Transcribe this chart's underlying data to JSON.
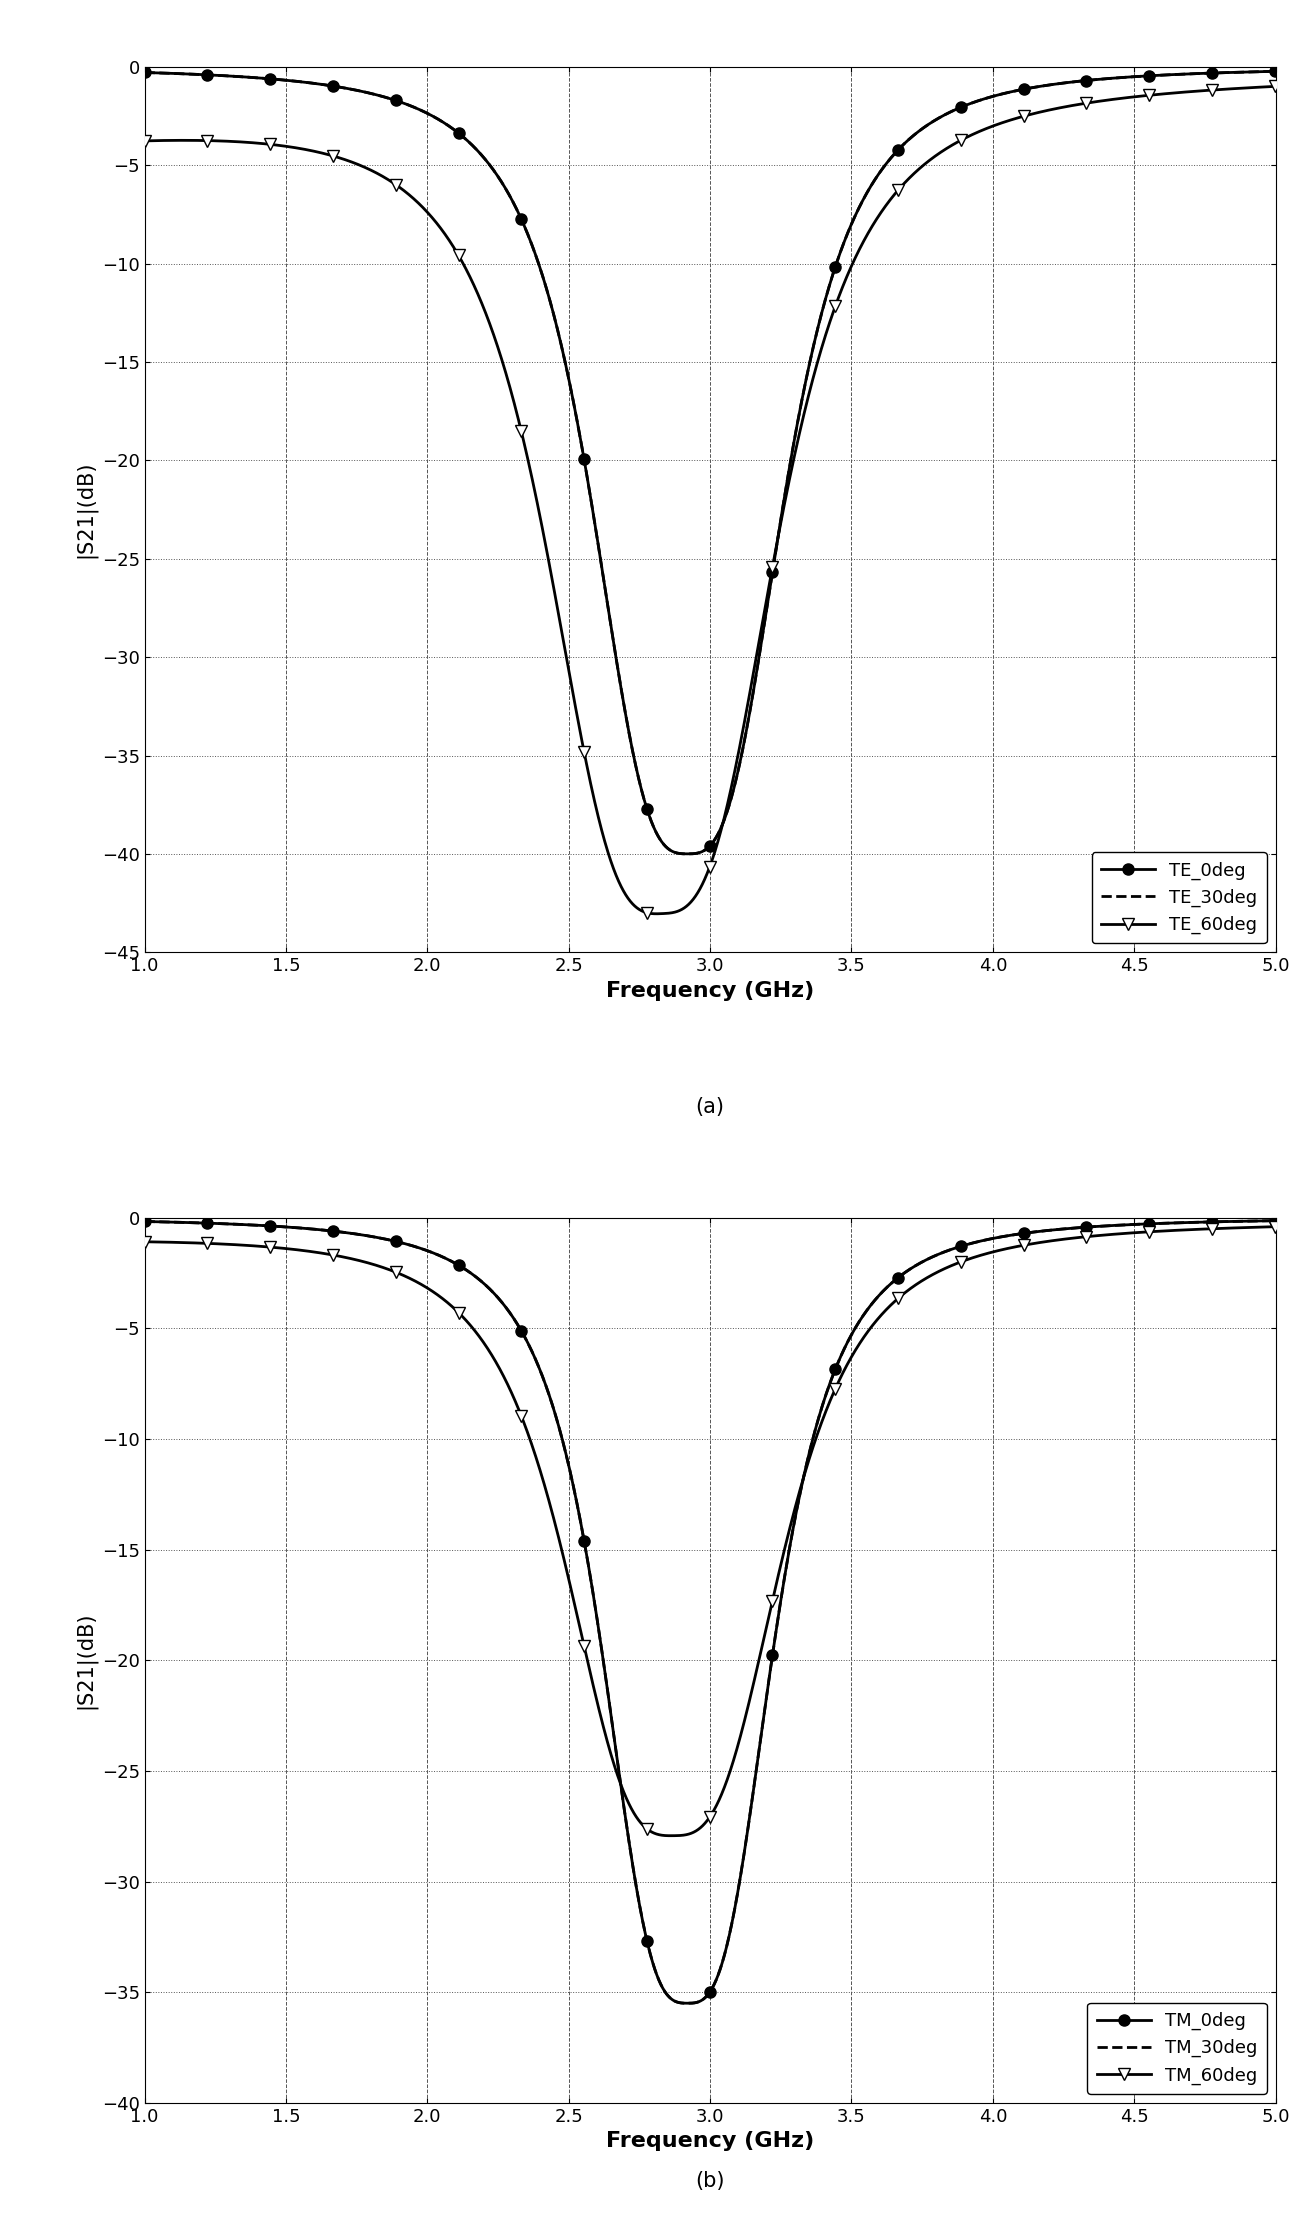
{
  "xlabel": "Frequency (GHz)",
  "ylabel": "|S21|(dB)",
  "xlim": [
    1.0,
    5.0
  ],
  "ylim_a": [
    -45,
    0
  ],
  "ylim_b": [
    -40,
    0
  ],
  "xticks": [
    1.0,
    1.5,
    2.0,
    2.5,
    3.0,
    3.5,
    4.0,
    4.5,
    5.0
  ],
  "yticks_a": [
    0,
    -5,
    -10,
    -15,
    -20,
    -25,
    -30,
    -35,
    -40,
    -45
  ],
  "yticks_b": [
    0,
    -5,
    -10,
    -15,
    -20,
    -25,
    -30,
    -35,
    -40
  ],
  "legend_a": [
    "TE_0deg",
    "TE_30deg",
    "TE_60deg"
  ],
  "legend_b": [
    "TM_0deg",
    "TM_30deg",
    "TM_60deg"
  ],
  "label_a": "(a)",
  "label_b": "(b)",
  "te_0_f0": 2.92,
  "te_0_depth": -40.0,
  "te_0_Q": 8.0,
  "te_0_lf": 0.0,
  "te_30_f0": 2.92,
  "te_30_depth": -40.0,
  "te_30_Q": 8.0,
  "te_30_lf": 0.0,
  "te_60_f0": 2.83,
  "te_60_depth": -41.5,
  "te_60_Q": 6.5,
  "te_60_lf": -3.2,
  "te_60_lf_decay": 2.5,
  "tm_0_f0": 2.92,
  "tm_0_depth": -35.5,
  "tm_0_Q": 9.0,
  "tm_0_lf": 0.0,
  "tm_30_f0": 2.92,
  "tm_30_depth": -35.5,
  "tm_30_Q": 9.0,
  "tm_30_lf": 0.0,
  "tm_60_f0": 2.87,
  "tm_60_depth": -27.5,
  "tm_60_Q": 7.0,
  "tm_60_lf": -0.8,
  "tm_60_lf_decay": 3.0
}
